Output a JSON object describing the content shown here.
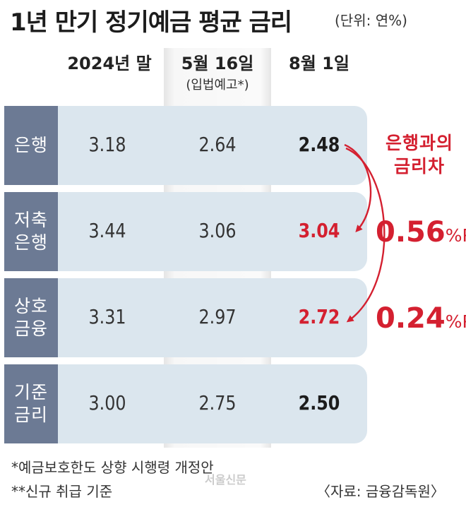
{
  "chart_data": {
    "type": "table",
    "title": "1년 만기 정기예금 평균 금리",
    "unit": "(단위: 연%)",
    "columns": [
      {
        "label": "2024년 말",
        "sub": ""
      },
      {
        "label": "5월 16일",
        "sub": "(입법예고*)"
      },
      {
        "label": "8월 1일",
        "sub": ""
      }
    ],
    "rows": [
      {
        "label": "은행",
        "values": [
          "3.18",
          "2.64",
          "2.48"
        ],
        "highlight": false
      },
      {
        "label": "저축\n은행",
        "values": [
          "3.44",
          "3.06",
          "3.04"
        ],
        "highlight": true
      },
      {
        "label": "상호\n금융",
        "values": [
          "3.31",
          "2.97",
          "2.72"
        ],
        "highlight": true
      },
      {
        "label": "기준\n금리",
        "values": [
          "3.00",
          "2.75",
          "2.50"
        ],
        "highlight": false
      }
    ],
    "annotation": {
      "title": "은행과의\n금리차",
      "diffs": [
        {
          "value": "0.56",
          "unit": "%P"
        },
        {
          "value": "0.24",
          "unit": "%P"
        }
      ]
    },
    "accent_color": "#d42030",
    "row_label_color": "#6c7a94",
    "row_bg_color": "#dbe6ee"
  },
  "notes": {
    "note1": "*예금보호한도 상향 시행령 개정안",
    "note2": "**신규 취급 기준",
    "source": "〈자료: 금융감독원〉",
    "watermark": "서울신문"
  }
}
